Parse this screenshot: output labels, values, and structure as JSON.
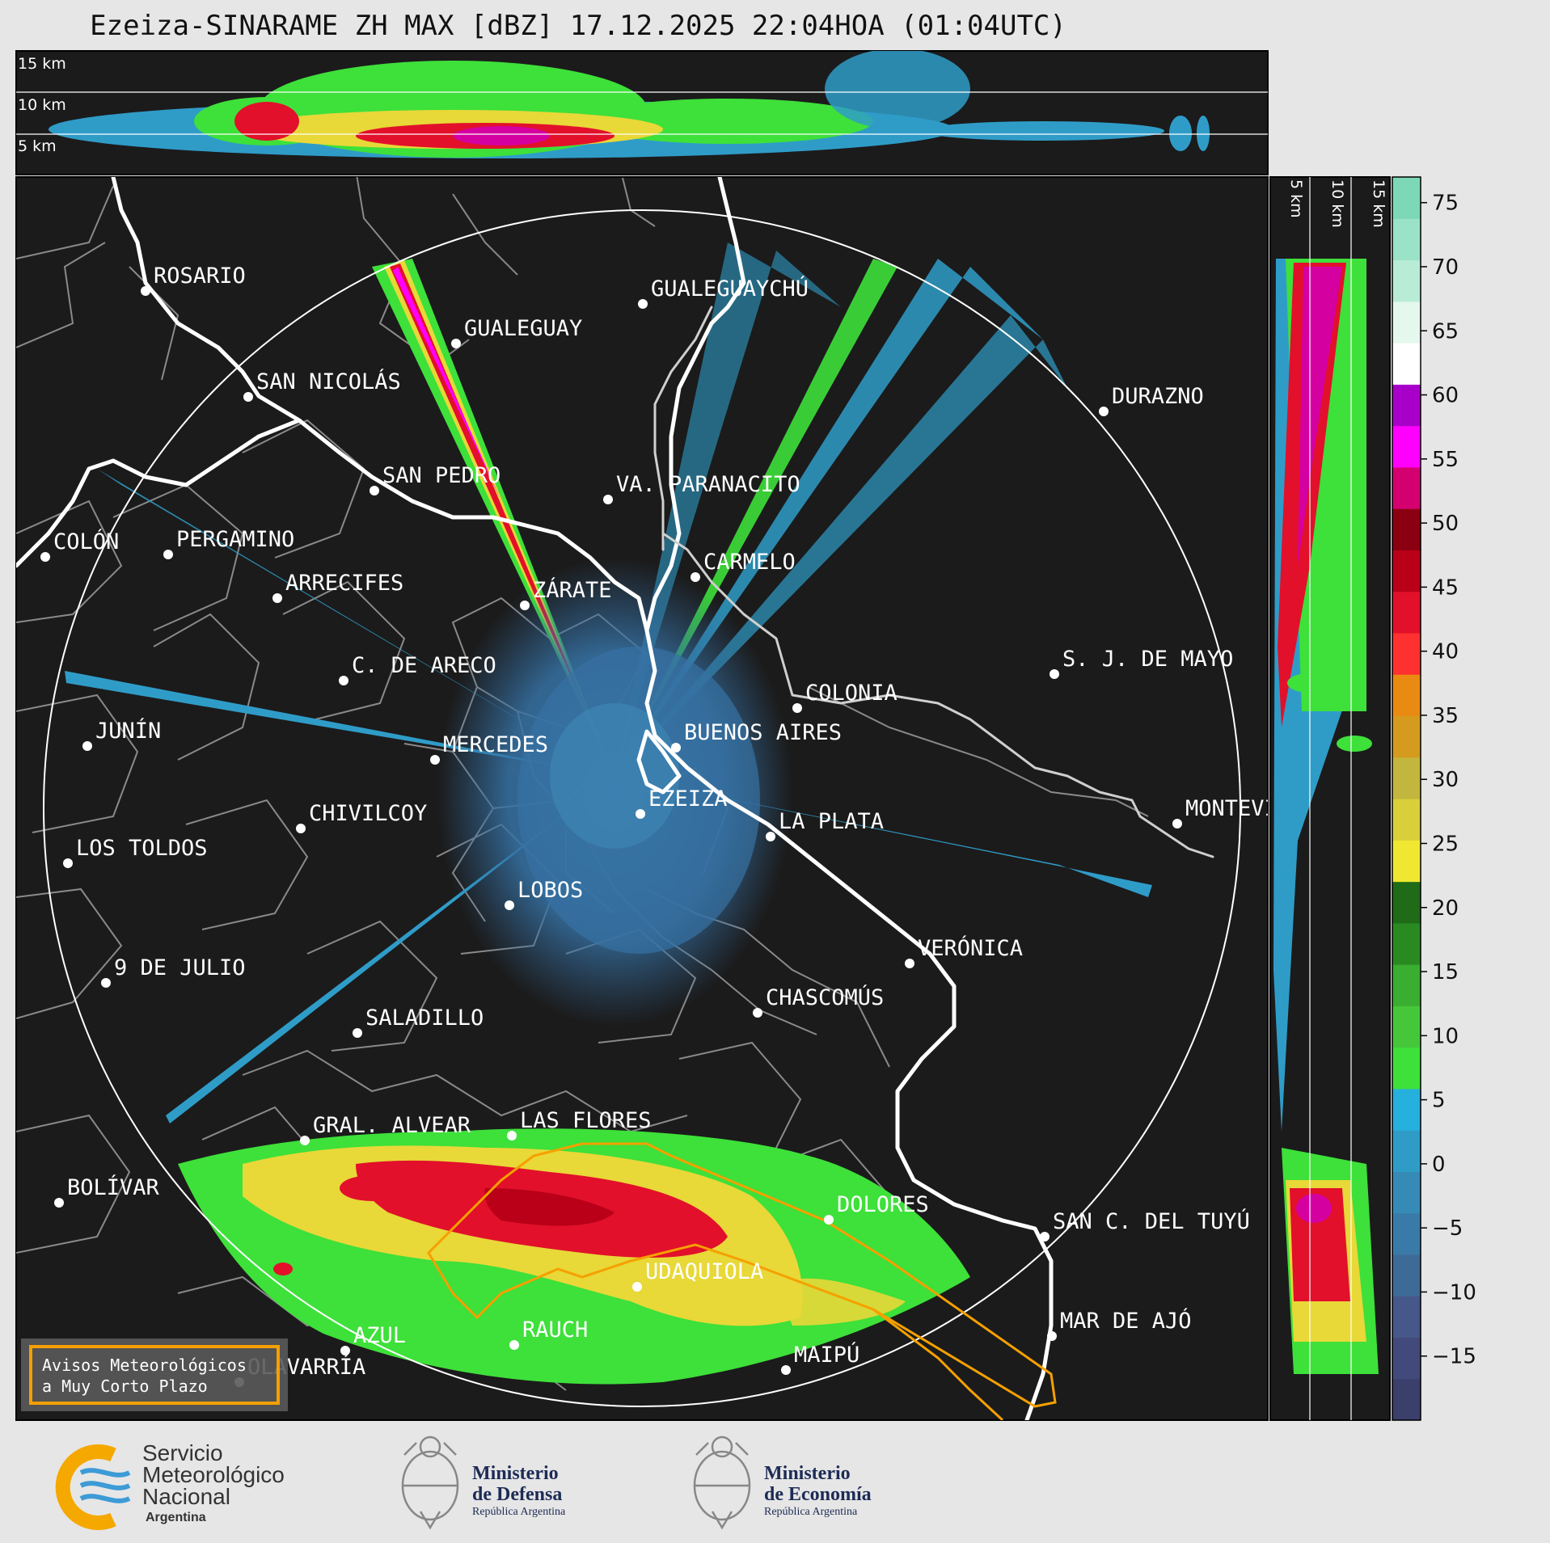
{
  "title": "Ezeiza-SINARAME ZH MAX [dBZ] 17.12.2025 22:04HOA (01:04UTC)",
  "top_panel": {
    "height_labels": [
      "15 km",
      "10 km",
      "5 km"
    ]
  },
  "side_panel": {
    "height_labels": [
      "5 km",
      "10 km",
      "15 km"
    ]
  },
  "colorbar": {
    "ticks": [
      "75",
      "70",
      "65",
      "60",
      "55",
      "50",
      "45",
      "40",
      "35",
      "30",
      "25",
      "20",
      "15",
      "10",
      "5",
      "0",
      "−5",
      "−10",
      "−15"
    ],
    "ticks_values": [
      75,
      70,
      65,
      60,
      55,
      50,
      45,
      40,
      35,
      30,
      25,
      20,
      15,
      10,
      5,
      0,
      -5,
      -10,
      -15
    ],
    "range": [
      -20,
      77
    ],
    "colors": [
      "#3b3f6b",
      "#414a7a",
      "#465889",
      "#3e6a98",
      "#3a7aa8",
      "#368bb6",
      "#2f9cc8",
      "#26b0de",
      "#3ee03a",
      "#46c73a",
      "#3aae30",
      "#2a8a22",
      "#1f6b18",
      "#f0e830",
      "#d8cf3a",
      "#c2b63e",
      "#d49b1e",
      "#e98b12",
      "#ff3030",
      "#e2102a",
      "#b90018",
      "#8a0010",
      "#d40070",
      "#ff00ff",
      "#a800c8",
      "#ffffff",
      "#e4f8ee",
      "#b9ecd6",
      "#9ae2c8",
      "#7dd8b8"
    ]
  },
  "cities": [
    {
      "name": "ROSARIO"
    },
    {
      "name": "GUALEGUAYCHÚ"
    },
    {
      "name": "GUALEGUAY"
    },
    {
      "name": "SAN NICOLÁS"
    },
    {
      "name": "DURAZNO"
    },
    {
      "name": "SAN PEDRO"
    },
    {
      "name": "VA. PARANACITO"
    },
    {
      "name": "COLÓN"
    },
    {
      "name": "PERGAMINO"
    },
    {
      "name": "CARMELO"
    },
    {
      "name": "ARRECIFES"
    },
    {
      "name": "ZÁRATE"
    },
    {
      "name": "S. J. DE MAYO"
    },
    {
      "name": "C. DE ARECO"
    },
    {
      "name": "COLONIA"
    },
    {
      "name": "JUNÍN"
    },
    {
      "name": "BUENOS AIRES"
    },
    {
      "name": "MERCEDES"
    },
    {
      "name": "EZEIZA"
    },
    {
      "name": "MONTEVIDEO"
    },
    {
      "name": "CHIVILCOY"
    },
    {
      "name": "LA PLATA"
    },
    {
      "name": "LOS TOLDOS"
    },
    {
      "name": "LOBOS"
    },
    {
      "name": "VERÓNICA"
    },
    {
      "name": "9 DE JULIO"
    },
    {
      "name": "CHASCOMÚS"
    },
    {
      "name": "SALADILLO"
    },
    {
      "name": "GRAL. ALVEAR"
    },
    {
      "name": "LAS FLORES"
    },
    {
      "name": "BOLÍVAR"
    },
    {
      "name": "DOLORES"
    },
    {
      "name": "SAN C. DEL TUYÚ"
    },
    {
      "name": "UDAQUIOLA"
    },
    {
      "name": "RAUCH"
    },
    {
      "name": "MAR DE AJÓ"
    },
    {
      "name": "AZUL"
    },
    {
      "name": "MAIPÚ"
    },
    {
      "name": "OLAVARRÍA"
    }
  ],
  "legend_box": {
    "line1": "Avisos Meteorológicos",
    "line2": "a Muy Corto Plazo",
    "color": "#f5a000"
  },
  "logos": {
    "smn": {
      "line1": "Servicio",
      "line2": "Meteorológico",
      "line3": "Nacional",
      "line4": "Argentina"
    },
    "defensa": {
      "line1": "Ministerio",
      "line2": "de Defensa",
      "line3": "República Argentina"
    },
    "economia": {
      "line1": "Ministerio",
      "line2": "de Economía",
      "line3": "República Argentina"
    }
  }
}
